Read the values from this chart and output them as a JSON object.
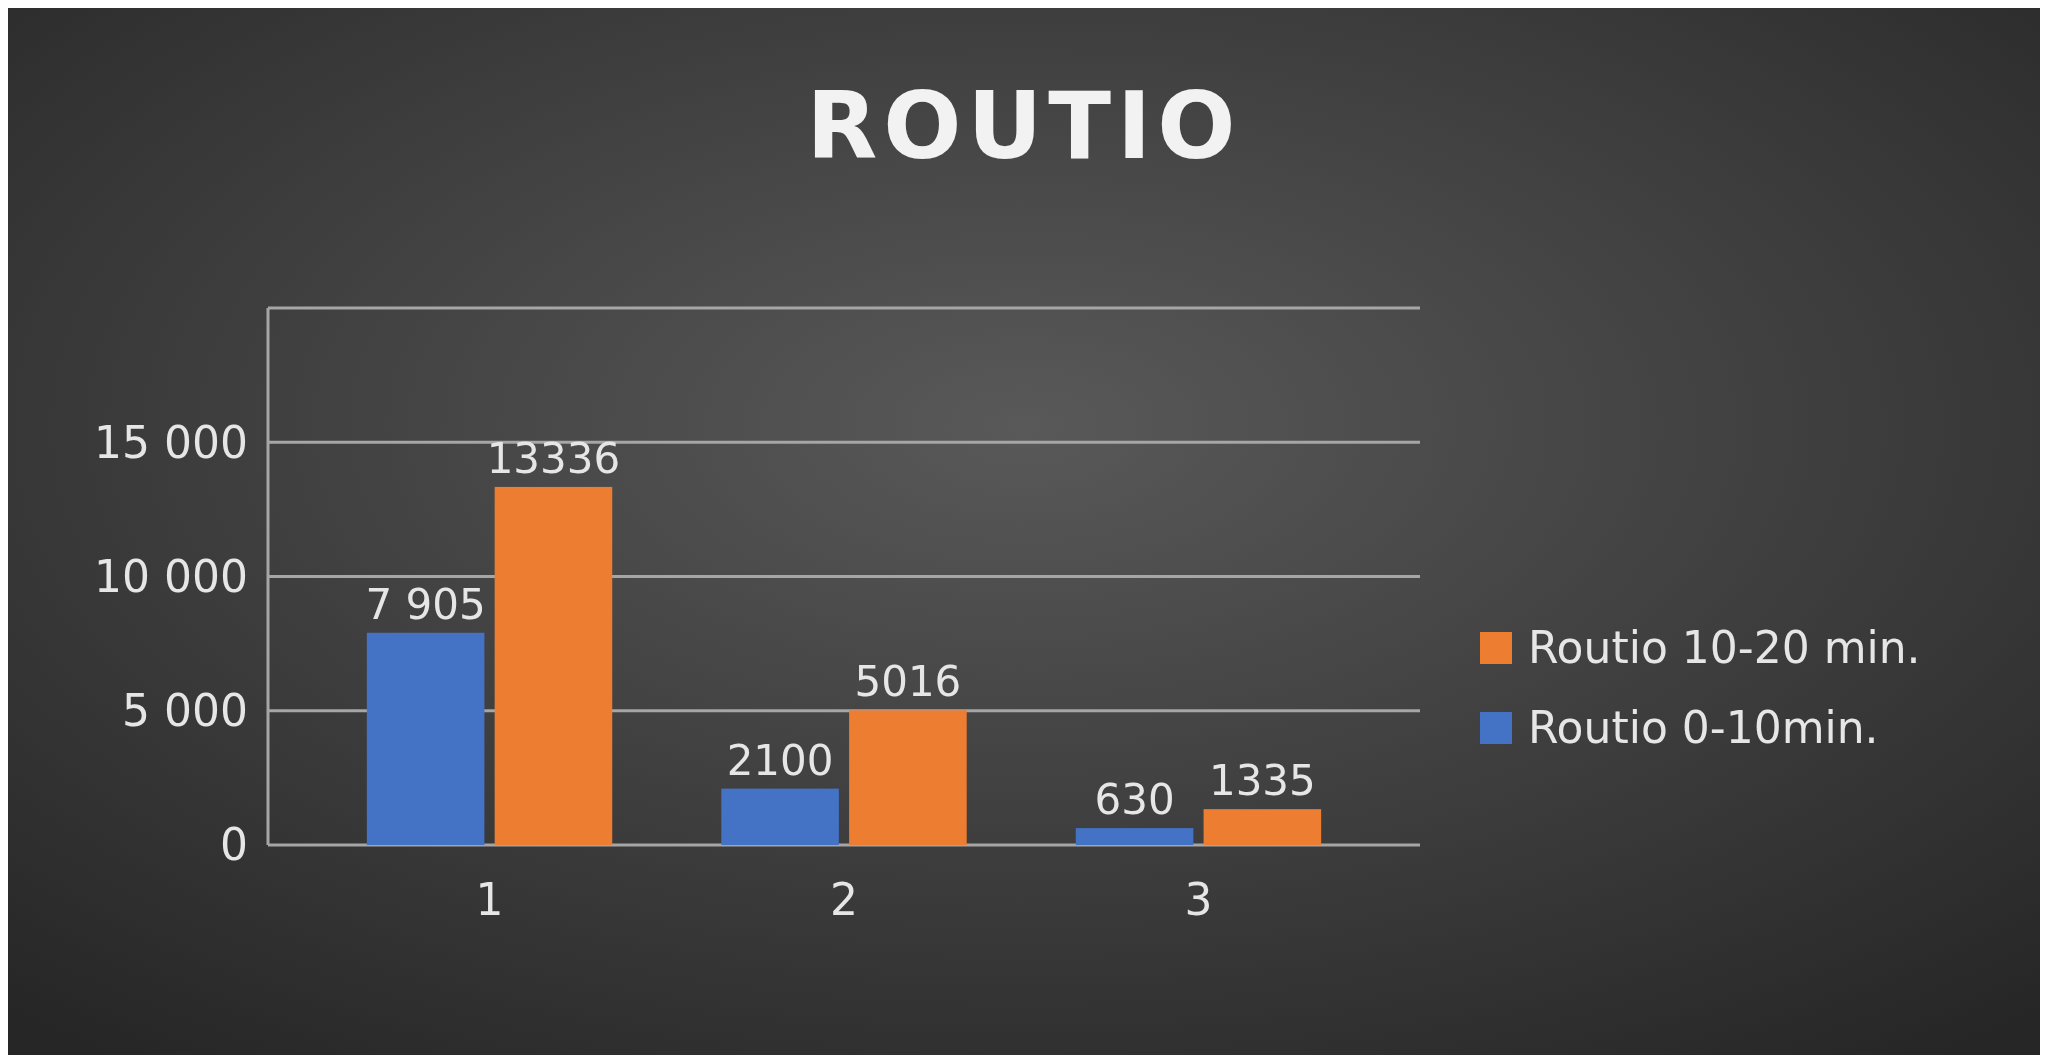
{
  "chart_data": {
    "type": "bar",
    "title": "ROUTIO",
    "categories": [
      "1",
      "2",
      "3"
    ],
    "series": [
      {
        "name": "Routio  0-10min.",
        "color": "#4472c4",
        "values": [
          7905,
          2100,
          630
        ],
        "value_labels": [
          "7 905",
          "2100",
          "630"
        ]
      },
      {
        "name": "Routio  10-20 min.",
        "color": "#ed7d31",
        "values": [
          13336,
          5016,
          1335
        ],
        "value_labels": [
          "13336",
          "5016",
          "1335"
        ]
      }
    ],
    "ylim": [
      0,
      20000
    ],
    "yticks": [
      {
        "value": 0,
        "label": "0"
      },
      {
        "value": 5000,
        "label": "5 000"
      },
      {
        "value": 10000,
        "label": "10 000"
      },
      {
        "value": 15000,
        "label": "15 000"
      },
      {
        "value": 20000,
        "label": null
      }
    ],
    "grid": "y",
    "legend": "right"
  }
}
